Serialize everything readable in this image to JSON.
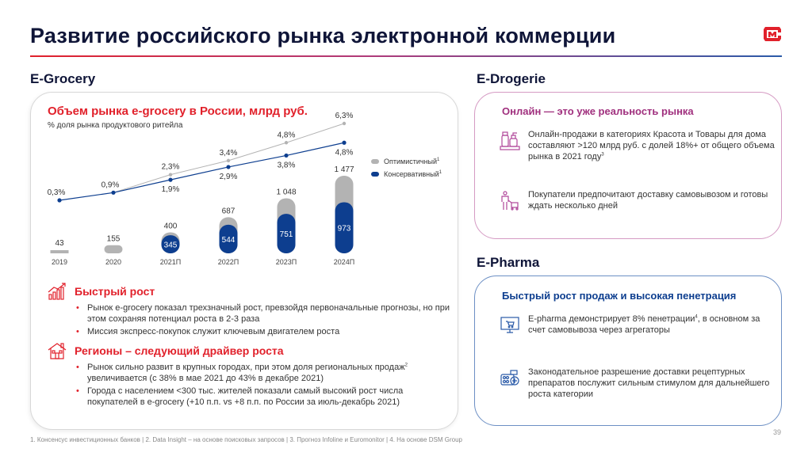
{
  "header": {
    "title": "Развитие российского рынка электронной коммерции",
    "logo": "magnit-logo",
    "accent_color": "#e1212b"
  },
  "egrocery": {
    "section_title": "E-Grocery",
    "chart_title": "Объем рынка e-grocery в России, млрд руб.",
    "chart_subtitle": "% доля рынка продуктового ритейла",
    "legend": [
      {
        "label": "Оптимистичный",
        "sup": "1",
        "color": "#b3b3b3"
      },
      {
        "label": "Консервативный",
        "sup": "1",
        "color": "#0d3e8f"
      }
    ],
    "blocks": [
      {
        "icon": "bar-growth-icon",
        "title": "Быстрый рост",
        "bullets": [
          "Рынок e-grocery показал трехзначный рост, превзойдя первоначальные прогнозы, но при этом сохраняя потенциал роста в 2-3 раза",
          "Миссия экспресс-покупок служит ключевым двигателем роста"
        ]
      },
      {
        "icon": "house-icon",
        "title": "Регионы – следующий драйвер роста",
        "bullets": [
          {
            "pre": "Рынок сильно развит в крупных городах, при этом доля региональных продаж",
            "sup": "2",
            "post": " увеличивается (с 38% в мае 2021 до 43% в декабре 2021)"
          },
          "Города с населением <300 тыс. жителей показали самый высокий рост числа покупателей в e-grocery (+10 п.п. vs +8 п.п. по России за июль-декабрь 2021)"
        ]
      }
    ]
  },
  "chart_data": {
    "type": "bar",
    "title": "Объем рынка e-grocery в России, млрд руб.",
    "subtitle": "% доля рынка продуктового ритейла",
    "categories": [
      "2019",
      "2020",
      "2021П",
      "2022П",
      "2023П",
      "2024П"
    ],
    "series": [
      {
        "name": "Оптимистичный",
        "color": "#b3b3b3",
        "values": [
          43,
          155,
          400,
          687,
          1048,
          1477
        ],
        "labels": [
          "43",
          "155",
          "400",
          "687",
          "1 048",
          "1 477"
        ]
      },
      {
        "name": "Консервативный",
        "color": "#0d3e8f",
        "values": [
          null,
          null,
          345,
          544,
          751,
          973
        ],
        "labels": [
          "",
          "",
          "345",
          "544",
          "751",
          "973"
        ]
      }
    ],
    "share_lines": [
      {
        "name": "Оптимистичный",
        "color": "#b3b3b3",
        "values": [
          null,
          null,
          2.3,
          3.4,
          4.8,
          6.3
        ],
        "labels": [
          "",
          "",
          "2,3%",
          "3,4%",
          "4,8%",
          "6,3%"
        ]
      },
      {
        "name": "Консервативный",
        "color": "#0d3e8f",
        "values": [
          0.3,
          0.9,
          1.9,
          2.9,
          3.8,
          4.8
        ],
        "labels": [
          "0,3%",
          "0,9%",
          "1,9%",
          "2,9%",
          "3,8%",
          "4,8%"
        ]
      }
    ],
    "legend_position": "right",
    "grid": false
  },
  "edrogerie": {
    "section_title": "E-Drogerie",
    "heading": "Онлайн — это уже реальность рынка",
    "items": [
      {
        "icon": "cosmetics-icon",
        "text": "Онлайн-продажи в категориях Красота и Товары для дома составляют >120 млрд руб. с долей 18%+ от общего объема рынка в 2021 году",
        "sup": "3"
      },
      {
        "icon": "shopper-cart-icon",
        "text": "Покупатели предпочитают доставку самовывозом и готовы ждать несколько дней"
      }
    ]
  },
  "epharma": {
    "section_title": "E-Pharma",
    "heading": "Быстрый рост продаж и высокая пенетрация",
    "items": [
      {
        "icon": "online-shop-icon",
        "pre": "E-pharma демонстрирует 8% пенетрации",
        "sup": "4",
        "post": ", в основном за счет самовывоза через агрегаторы"
      },
      {
        "icon": "pills-icon",
        "text": "Законодательное разрешение доставки рецептурных препаратов послужит сильным стимулом для дальнейшего роста категории"
      }
    ]
  },
  "footer": {
    "footnotes": "1. Консенсус инвестиционных банков | 2. Data Insight – на основе поисковых запросов | 3. Прогноз Infoline и Euromonitor | 4. На основе DSM Group",
    "page_number": "39"
  }
}
